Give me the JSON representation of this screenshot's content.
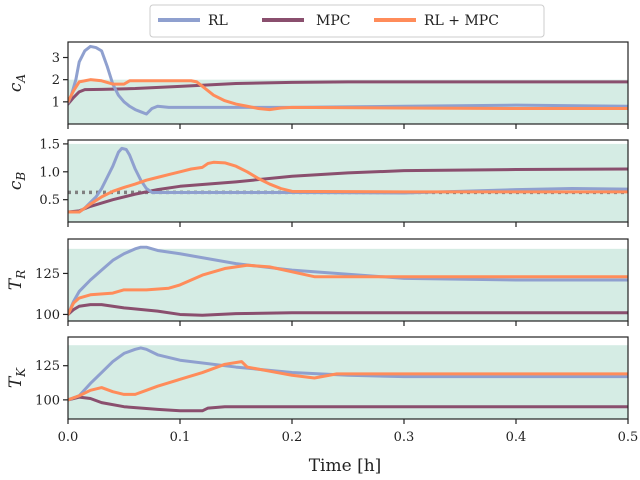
{
  "chart_data": {
    "type": "line",
    "xlabel": "Time [h]",
    "xlim": [
      0,
      0.5
    ],
    "xticks": [
      "0.0",
      "0.1",
      "0.2",
      "0.3",
      "0.4",
      "0.5"
    ],
    "legend": {
      "placement": "top-center",
      "entries": [
        {
          "name": "RL",
          "color": "#8fa0cf"
        },
        {
          "name": "MPC",
          "color": "#8a4f6e"
        },
        {
          "name": "RL + MPC",
          "color": "#ff8c5a"
        }
      ]
    },
    "safe_region_color": "#d5ece4",
    "setpoint_color": "#808080",
    "subplots": [
      {
        "ylabel": "c",
        "ylabel_sub": "A",
        "ylim": [
          0,
          3.7
        ],
        "yticks": [
          1,
          2,
          3
        ],
        "safe_region": [
          0,
          2.0
        ],
        "series": {
          "RL": [
            [
              0,
              0.95
            ],
            [
              0.003,
              1.3
            ],
            [
              0.007,
              2.0
            ],
            [
              0.01,
              2.8
            ],
            [
              0.015,
              3.3
            ],
            [
              0.02,
              3.5
            ],
            [
              0.025,
              3.45
            ],
            [
              0.03,
              3.3
            ],
            [
              0.035,
              2.6
            ],
            [
              0.04,
              1.8
            ],
            [
              0.045,
              1.3
            ],
            [
              0.05,
              1.0
            ],
            [
              0.055,
              0.8
            ],
            [
              0.06,
              0.65
            ],
            [
              0.065,
              0.55
            ],
            [
              0.07,
              0.45
            ],
            [
              0.075,
              0.7
            ],
            [
              0.08,
              0.8
            ],
            [
              0.09,
              0.75
            ],
            [
              0.1,
              0.75
            ],
            [
              0.2,
              0.75
            ],
            [
              0.3,
              0.8
            ],
            [
              0.4,
              0.85
            ],
            [
              0.5,
              0.8
            ]
          ],
          "MPC": [
            [
              0,
              0.9
            ],
            [
              0.005,
              1.2
            ],
            [
              0.01,
              1.45
            ],
            [
              0.015,
              1.55
            ],
            [
              0.03,
              1.56
            ],
            [
              0.06,
              1.6
            ],
            [
              0.1,
              1.7
            ],
            [
              0.15,
              1.83
            ],
            [
              0.2,
              1.88
            ],
            [
              0.25,
              1.9
            ],
            [
              0.3,
              1.9
            ],
            [
              0.4,
              1.9
            ],
            [
              0.5,
              1.9
            ]
          ],
          "RL + MPC": [
            [
              0,
              1.0
            ],
            [
              0.005,
              1.5
            ],
            [
              0.01,
              1.9
            ],
            [
              0.02,
              2.0
            ],
            [
              0.03,
              1.95
            ],
            [
              0.04,
              1.8
            ],
            [
              0.05,
              1.8
            ],
            [
              0.055,
              1.95
            ],
            [
              0.06,
              1.95
            ],
            [
              0.09,
              1.95
            ],
            [
              0.11,
              1.95
            ],
            [
              0.115,
              1.9
            ],
            [
              0.12,
              1.7
            ],
            [
              0.13,
              1.3
            ],
            [
              0.14,
              1.05
            ],
            [
              0.15,
              0.9
            ],
            [
              0.16,
              0.8
            ],
            [
              0.17,
              0.7
            ],
            [
              0.18,
              0.65
            ],
            [
              0.19,
              0.72
            ],
            [
              0.2,
              0.75
            ],
            [
              0.3,
              0.72
            ],
            [
              0.4,
              0.7
            ],
            [
              0.5,
              0.7
            ]
          ]
        }
      },
      {
        "ylabel": "c",
        "ylabel_sub": "B",
        "ylim": [
          0.1,
          1.57
        ],
        "yticks": [
          0.5,
          1.0,
          1.5
        ],
        "safe_region": [
          0.1,
          1.5
        ],
        "setpoint": 0.63,
        "series": {
          "RL": [
            [
              0,
              0.28
            ],
            [
              0.01,
              0.28
            ],
            [
              0.015,
              0.35
            ],
            [
              0.02,
              0.45
            ],
            [
              0.025,
              0.55
            ],
            [
              0.03,
              0.7
            ],
            [
              0.035,
              0.9
            ],
            [
              0.04,
              1.1
            ],
            [
              0.045,
              1.35
            ],
            [
              0.048,
              1.42
            ],
            [
              0.052,
              1.4
            ],
            [
              0.055,
              1.3
            ],
            [
              0.06,
              1.05
            ],
            [
              0.065,
              0.85
            ],
            [
              0.07,
              0.7
            ],
            [
              0.075,
              0.63
            ],
            [
              0.1,
              0.63
            ],
            [
              0.2,
              0.63
            ],
            [
              0.3,
              0.62
            ],
            [
              0.4,
              0.68
            ],
            [
              0.45,
              0.7
            ],
            [
              0.5,
              0.69
            ]
          ],
          "MPC": [
            [
              0,
              0.28
            ],
            [
              0.01,
              0.3
            ],
            [
              0.02,
              0.38
            ],
            [
              0.04,
              0.5
            ],
            [
              0.06,
              0.6
            ],
            [
              0.08,
              0.68
            ],
            [
              0.1,
              0.74
            ],
            [
              0.15,
              0.82
            ],
            [
              0.2,
              0.92
            ],
            [
              0.25,
              0.98
            ],
            [
              0.3,
              1.02
            ],
            [
              0.4,
              1.04
            ],
            [
              0.5,
              1.05
            ]
          ],
          "RL + MPC": [
            [
              0,
              0.28
            ],
            [
              0.01,
              0.28
            ],
            [
              0.015,
              0.35
            ],
            [
              0.02,
              0.42
            ],
            [
              0.03,
              0.55
            ],
            [
              0.04,
              0.65
            ],
            [
              0.05,
              0.72
            ],
            [
              0.06,
              0.78
            ],
            [
              0.07,
              0.85
            ],
            [
              0.08,
              0.9
            ],
            [
              0.09,
              0.95
            ],
            [
              0.1,
              1.0
            ],
            [
              0.11,
              1.05
            ],
            [
              0.12,
              1.08
            ],
            [
              0.125,
              1.15
            ],
            [
              0.13,
              1.17
            ],
            [
              0.14,
              1.16
            ],
            [
              0.15,
              1.1
            ],
            [
              0.16,
              1.0
            ],
            [
              0.17,
              0.88
            ],
            [
              0.18,
              0.78
            ],
            [
              0.19,
              0.7
            ],
            [
              0.2,
              0.65
            ],
            [
              0.3,
              0.64
            ],
            [
              0.4,
              0.64
            ],
            [
              0.5,
              0.64
            ]
          ]
        }
      },
      {
        "ylabel": "T",
        "ylabel_sub": "R",
        "ylim": [
          96,
          146
        ],
        "yticks": [
          100,
          125
        ],
        "safe_region": [
          96,
          140
        ],
        "series": {
          "RL": [
            [
              0,
              100
            ],
            [
              0.005,
              108
            ],
            [
              0.01,
              114
            ],
            [
              0.02,
              121
            ],
            [
              0.03,
              127
            ],
            [
              0.04,
              133
            ],
            [
              0.05,
              137
            ],
            [
              0.06,
              140
            ],
            [
              0.065,
              141
            ],
            [
              0.07,
              141
            ],
            [
              0.08,
              139
            ],
            [
              0.1,
              137
            ],
            [
              0.15,
              131
            ],
            [
              0.2,
              127
            ],
            [
              0.3,
              122
            ],
            [
              0.4,
              121
            ],
            [
              0.5,
              121
            ]
          ],
          "MPC": [
            [
              0,
              100
            ],
            [
              0.005,
              103
            ],
            [
              0.01,
              105
            ],
            [
              0.02,
              106
            ],
            [
              0.03,
              106
            ],
            [
              0.05,
              104
            ],
            [
              0.08,
              102
            ],
            [
              0.1,
              100
            ],
            [
              0.12,
              99.5
            ],
            [
              0.15,
              100.5
            ],
            [
              0.2,
              101
            ],
            [
              0.3,
              101
            ],
            [
              0.4,
              101
            ],
            [
              0.5,
              101
            ]
          ],
          "RL + MPC": [
            [
              0,
              100
            ],
            [
              0.005,
              107
            ],
            [
              0.01,
              110
            ],
            [
              0.02,
              112
            ],
            [
              0.04,
              113
            ],
            [
              0.05,
              115
            ],
            [
              0.07,
              115
            ],
            [
              0.09,
              116
            ],
            [
              0.1,
              118
            ],
            [
              0.12,
              124
            ],
            [
              0.14,
              128
            ],
            [
              0.16,
              130
            ],
            [
              0.18,
              129
            ],
            [
              0.2,
              126
            ],
            [
              0.22,
              123
            ],
            [
              0.3,
              123
            ],
            [
              0.4,
              123
            ],
            [
              0.5,
              123
            ]
          ]
        }
      },
      {
        "ylabel": "T",
        "ylabel_sub": "K",
        "ylim": [
          86,
          146
        ],
        "yticks": [
          100,
          125
        ],
        "safe_region": [
          86,
          140
        ],
        "series": {
          "RL": [
            [
              0,
              100
            ],
            [
              0.01,
              103
            ],
            [
              0.02,
              112
            ],
            [
              0.03,
              120
            ],
            [
              0.04,
              128
            ],
            [
              0.05,
              134
            ],
            [
              0.06,
              137
            ],
            [
              0.065,
              138
            ],
            [
              0.07,
              137
            ],
            [
              0.08,
              133
            ],
            [
              0.1,
              129
            ],
            [
              0.15,
              124
            ],
            [
              0.2,
              120
            ],
            [
              0.25,
              118
            ],
            [
              0.3,
              117
            ],
            [
              0.4,
              117
            ],
            [
              0.5,
              117
            ]
          ],
          "MPC": [
            [
              0,
              100
            ],
            [
              0.01,
              102
            ],
            [
              0.02,
              101
            ],
            [
              0.03,
              98
            ],
            [
              0.05,
              95
            ],
            [
              0.08,
              93
            ],
            [
              0.1,
              92
            ],
            [
              0.12,
              92
            ],
            [
              0.125,
              94
            ],
            [
              0.14,
              95
            ],
            [
              0.2,
              95
            ],
            [
              0.3,
              95
            ],
            [
              0.4,
              95
            ],
            [
              0.5,
              95
            ]
          ],
          "RL + MPC": [
            [
              0,
              100
            ],
            [
              0.01,
              103
            ],
            [
              0.02,
              107
            ],
            [
              0.03,
              109
            ],
            [
              0.04,
              106
            ],
            [
              0.05,
              104
            ],
            [
              0.06,
              104
            ],
            [
              0.07,
              107
            ],
            [
              0.08,
              110
            ],
            [
              0.1,
              115
            ],
            [
              0.12,
              120
            ],
            [
              0.14,
              126
            ],
            [
              0.155,
              128
            ],
            [
              0.16,
              124
            ],
            [
              0.18,
              121
            ],
            [
              0.2,
              118
            ],
            [
              0.22,
              116
            ],
            [
              0.24,
              119
            ],
            [
              0.3,
              119
            ],
            [
              0.4,
              119
            ],
            [
              0.5,
              119
            ]
          ]
        }
      }
    ]
  }
}
